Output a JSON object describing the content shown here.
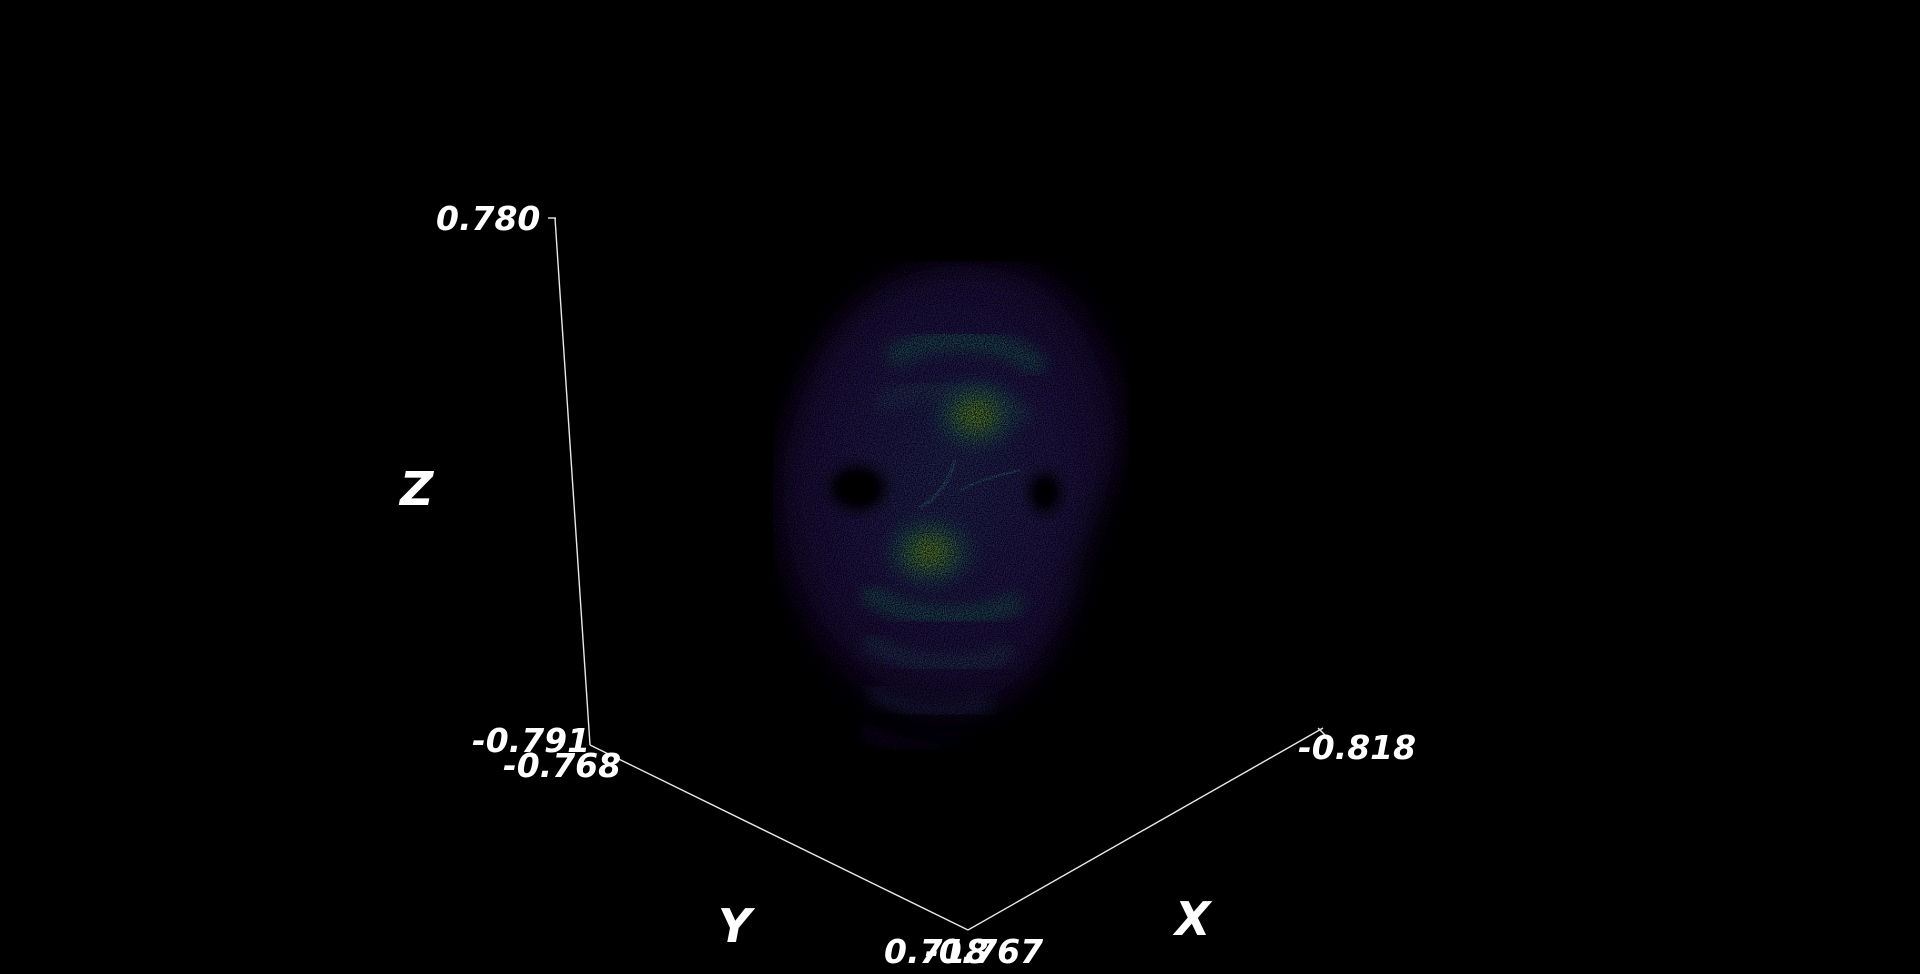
{
  "scene": {
    "background": "#000000",
    "axis_color": "#ffffff",
    "colormap": [
      "#2a0a4a",
      "#3b1d7a",
      "#3a4b9a",
      "#2f7aa2",
      "#2fa08a",
      "#6fbf5a",
      "#b6d33a"
    ]
  },
  "axes": {
    "x": {
      "label": "X",
      "min_label": "-0.767",
      "max_label": "-0.818"
    },
    "y": {
      "label": "Y",
      "min_label": "-0.768",
      "max_label": "0.718"
    },
    "z": {
      "label": "Z",
      "min_label": "-0.791",
      "max_label": "0.780"
    }
  }
}
